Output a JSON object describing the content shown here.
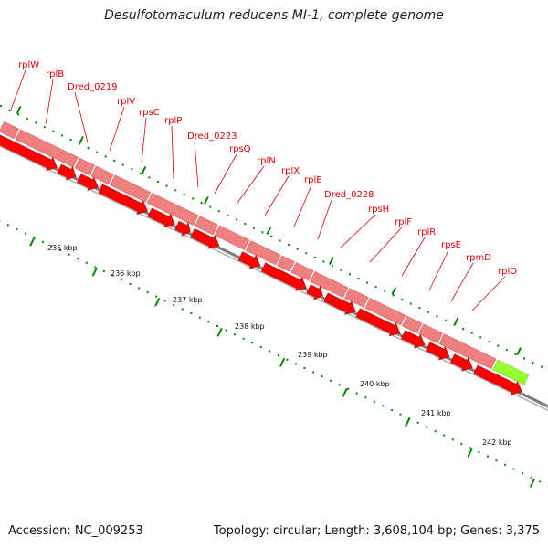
{
  "title": "Desulfotomaculum reducens MI-1, complete genome",
  "footer": {
    "accession": "Accession: NC_009253",
    "topology": "Topology: circular; Length: 3,608,104 bp; Genes: 3,375"
  },
  "colors": {
    "gene_label": "#e00000",
    "forward_strand_light": "#f08080",
    "forward_strand_highlight": "#99ff33",
    "reverse_strand": "#ff0000",
    "backbone": "#808080",
    "tick": "#008800"
  },
  "gene_labels": [
    "rplW",
    "rplB",
    "Dred_0219",
    "rplV",
    "rpsC",
    "rplP",
    "Dred_0223",
    "rpsQ",
    "rplN",
    "rplX",
    "rplE",
    "Dred_0228",
    "rpsH",
    "rplF",
    "rplR",
    "rpsE",
    "rpmD",
    "rplO"
  ],
  "kbp_labels": [
    "235 kbp",
    "236 kbp",
    "237 kbp",
    "238 kbp",
    "239 kbp",
    "240 kbp",
    "241 kbp",
    "242 kbp"
  ]
}
